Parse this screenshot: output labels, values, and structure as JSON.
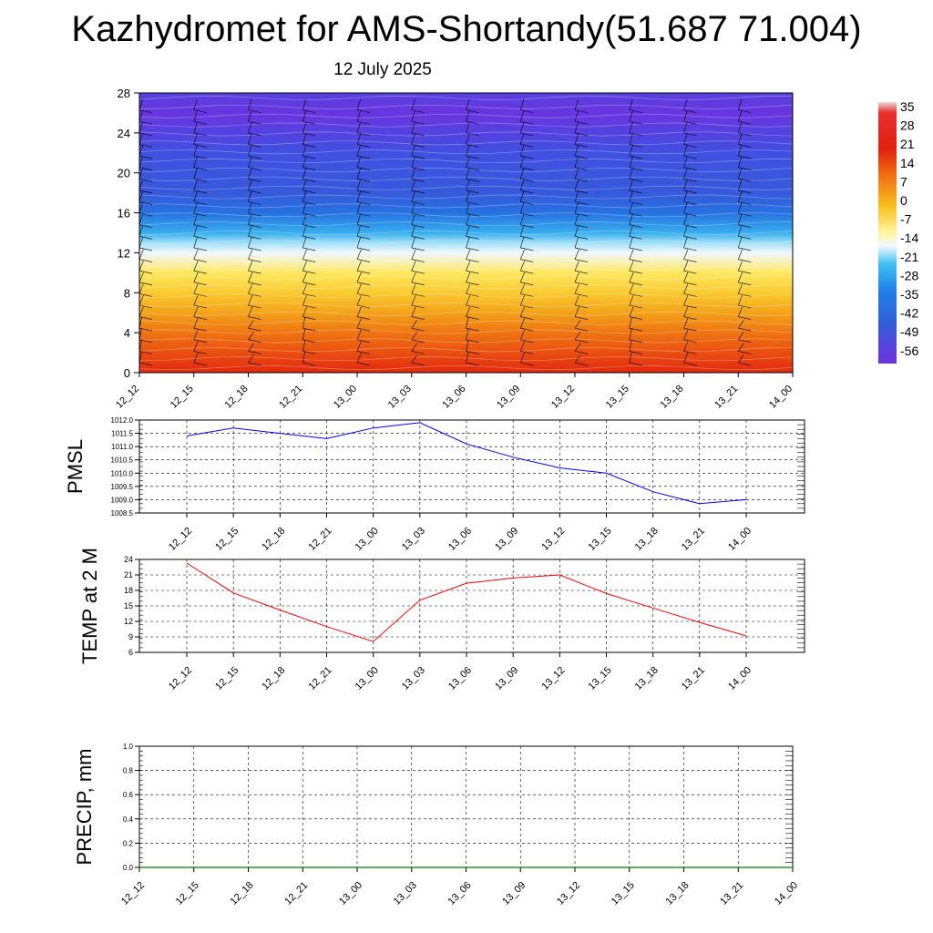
{
  "header": {
    "title": "Kazhydromet for AMS-Shortandy(51.687 71.004)",
    "subtitle": "12 July 2025"
  },
  "chart_data": [
    {
      "type": "heatmap",
      "name": "vertical-cross-section",
      "xlabel": "",
      "ylabel": "",
      "x_ticks": [
        "12_12",
        "12_15",
        "12_18",
        "12_21",
        "13_00",
        "13_03",
        "13_06",
        "13_09",
        "13_12",
        "13_15",
        "13_18",
        "13_21",
        "14_00"
      ],
      "y_ticks": [
        0,
        4,
        8,
        12,
        16,
        20,
        24,
        28
      ],
      "ylim": [
        0,
        28
      ],
      "colorbar_labels": [
        "35",
        "28",
        "21",
        "14",
        "7",
        "0",
        "-7",
        "-14",
        "-21",
        "-28",
        "-35",
        "-42",
        "-49",
        "-56"
      ],
      "colorbar_range": [
        -56,
        35
      ],
      "temperature_profile": [
        {
          "height": 0,
          "value": 24
        },
        {
          "height": 2,
          "value": 17
        },
        {
          "height": 4,
          "value": 11
        },
        {
          "height": 6,
          "value": 4
        },
        {
          "height": 8,
          "value": -2
        },
        {
          "height": 10,
          "value": -7
        },
        {
          "height": 12,
          "value": -14
        },
        {
          "height": 13,
          "value": -21
        },
        {
          "height": 14,
          "value": -30
        },
        {
          "height": 16,
          "value": -38
        },
        {
          "height": 18,
          "value": -45
        },
        {
          "height": 20,
          "value": -47
        },
        {
          "height": 22,
          "value": -49
        },
        {
          "height": 24,
          "value": -52
        },
        {
          "height": 26,
          "value": -55
        },
        {
          "height": 28,
          "value": -52
        }
      ],
      "wind_barbs": true,
      "colors": {
        "warm": "#e02010",
        "cold": "#1e3cf0",
        "neutral": "#fff5a0"
      }
    },
    {
      "type": "line",
      "name": "pmsl",
      "ylabel": "PMSL",
      "x": [
        "12_12",
        "12_15",
        "12_18",
        "12_21",
        "13_00",
        "13_03",
        "13_06",
        "13_09",
        "13_12",
        "13_15",
        "13_18",
        "13_21",
        "14_00"
      ],
      "values": [
        1011.4,
        1011.7,
        1011.5,
        1011.3,
        1011.7,
        1011.9,
        1011.1,
        1010.6,
        1010.2,
        1010.0,
        1009.3,
        1008.85,
        1009.0
      ],
      "y_ticks": [
        "1012.0",
        "1011.5",
        "1011.0",
        "1010.5",
        "1010.0",
        "1009.5",
        "1009.0",
        "1008.5"
      ],
      "ylim": [
        1008.5,
        1012.0
      ],
      "color": "#0000ff"
    },
    {
      "type": "line",
      "name": "temp",
      "ylabel": "TEMP at 2 M",
      "x": [
        "12_12",
        "12_15",
        "12_18",
        "12_21",
        "13_00",
        "13_03",
        "13_06",
        "13_09",
        "13_12",
        "13_15",
        "13_18",
        "13_21",
        "14_00"
      ],
      "values": [
        23.3,
        17.5,
        14.2,
        11.0,
        8.1,
        16.1,
        19.4,
        20.4,
        21.0,
        17.4,
        14.6,
        11.8,
        9.2
      ],
      "y_ticks": [
        "24",
        "21",
        "18",
        "15",
        "12",
        "9",
        "6"
      ],
      "ylim": [
        6,
        24
      ],
      "color": "#ff0000"
    },
    {
      "type": "line",
      "name": "precip",
      "ylabel": "PRECIP, mm",
      "x": [
        "12_12",
        "12_15",
        "12_18",
        "12_21",
        "13_00",
        "13_03",
        "13_06",
        "13_09",
        "13_12",
        "13_15",
        "13_18",
        "13_21",
        "14_00"
      ],
      "values": [
        0,
        0,
        0,
        0,
        0,
        0,
        0,
        0,
        0,
        0,
        0,
        0,
        0
      ],
      "y_ticks": [
        "1.0",
        "0.8",
        "0.6",
        "0.4",
        "0.2",
        "0.0"
      ],
      "ylim": [
        0,
        1.0
      ],
      "color": "#008000"
    }
  ]
}
